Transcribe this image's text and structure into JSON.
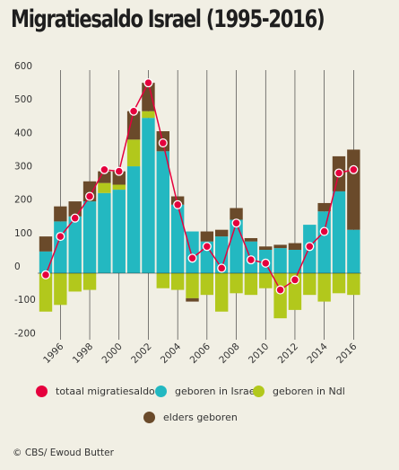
{
  "title": "Migratiesaldo Israel (1995-2016)",
  "credit": "© CBS/ Ewoud Butter",
  "colors": {
    "background": "#f1efe4",
    "total": "#e5003d",
    "israel": "#23b8c1",
    "ndl": "#b2c81c",
    "elders": "#6a4a2a"
  },
  "chart_data": {
    "type": "bar",
    "stacked": true,
    "title": "Migratiesaldo Israel (1995-2016)",
    "xlabel": "",
    "ylabel": "",
    "ylim": [
      -200,
      600
    ],
    "y_ticks": [
      600,
      500,
      400,
      300,
      200,
      100,
      0,
      -100,
      -200
    ],
    "y_tick_labels": [
      "600",
      "500",
      "400",
      "300",
      "200",
      "100",
      "0",
      "-100",
      "-200"
    ],
    "x": [
      1995,
      1996,
      1997,
      1998,
      1999,
      2000,
      2001,
      2002,
      2003,
      2004,
      2005,
      2006,
      2007,
      2008,
      2009,
      2010,
      2011,
      2012,
      2013,
      2014,
      2015,
      2016
    ],
    "x_tick_labels": [
      "1996",
      "1998",
      "2000",
      "2002",
      "2004",
      "2006",
      "2008",
      "2010",
      "2012",
      "2014",
      "2016"
    ],
    "grid": "vertical",
    "legend_position": "bottom",
    "series": [
      {
        "name": "geboren in Israel",
        "kind": "bar",
        "color": "#23b8c1",
        "values": [
          65,
          155,
          170,
          215,
          240,
          250,
          320,
          465,
          365,
          205,
          125,
          95,
          110,
          160,
          95,
          70,
          75,
          70,
          145,
          185,
          245,
          130
        ]
      },
      {
        "name": "geboren in Ndl",
        "kind": "bar",
        "color": "#b2c81c",
        "values": [
          -115,
          -95,
          -55,
          -50,
          30,
          15,
          80,
          20,
          -45,
          -50,
          -75,
          -65,
          -115,
          -60,
          -65,
          -45,
          -135,
          -110,
          -65,
          -85,
          -60,
          -65
        ]
      },
      {
        "name": "elders geboren",
        "kind": "bar",
        "color": "#6a4a2a",
        "values": [
          45,
          45,
          45,
          60,
          35,
          40,
          85,
          85,
          60,
          25,
          -10,
          30,
          20,
          35,
          10,
          10,
          10,
          20,
          0,
          25,
          105,
          240
        ]
      },
      {
        "name": "totaal migratiesaldo",
        "kind": "line",
        "color": "#e5003d",
        "values": [
          -5,
          110,
          165,
          230,
          310,
          305,
          485,
          570,
          390,
          205,
          45,
          80,
          15,
          150,
          40,
          30,
          -50,
          -20,
          80,
          125,
          300,
          310
        ]
      }
    ]
  }
}
